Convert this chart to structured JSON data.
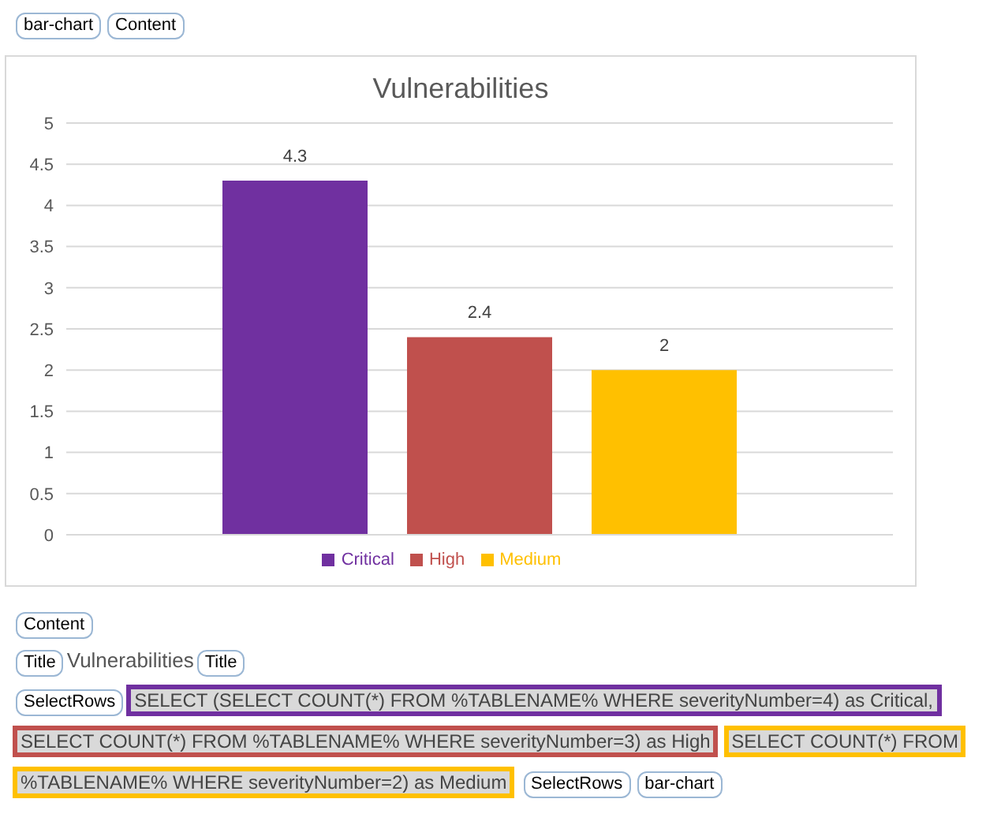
{
  "chart_data": {
    "type": "bar",
    "title": "Vulnerabilities",
    "categories": [
      null
    ],
    "series": [
      {
        "name": "Critical",
        "color": "#7030a0",
        "values": [
          4.3
        ]
      },
      {
        "name": "High",
        "color": "#c0504d",
        "values": [
          2.4
        ]
      },
      {
        "name": "Medium",
        "color": "#ffc000",
        "values": [
          2
        ]
      }
    ],
    "ylim": [
      0,
      5
    ],
    "yticks": [
      0,
      0.5,
      1,
      1.5,
      2,
      2.5,
      3,
      3.5,
      4,
      4.5,
      5
    ],
    "grid": "y",
    "legend": "bottom",
    "data_labels": true,
    "annotations": [
      "bar-chart",
      "Content",
      "Content",
      "Title",
      "Vulnerabilities",
      "Title",
      "SelectRows",
      "SELECT (SELECT COUNT(*) FROM %TABLENAME% WHERE severityNumber=4) as Critical,",
      "SELECT COUNT(*) FROM %TABLENAME% WHERE severityNumber=3) as High",
      "SELECT COUNT(*) FROM %TABLENAME% WHERE severityNumber=2) as Medium",
      "SelectRows",
      "bar-chart"
    ]
  }
}
